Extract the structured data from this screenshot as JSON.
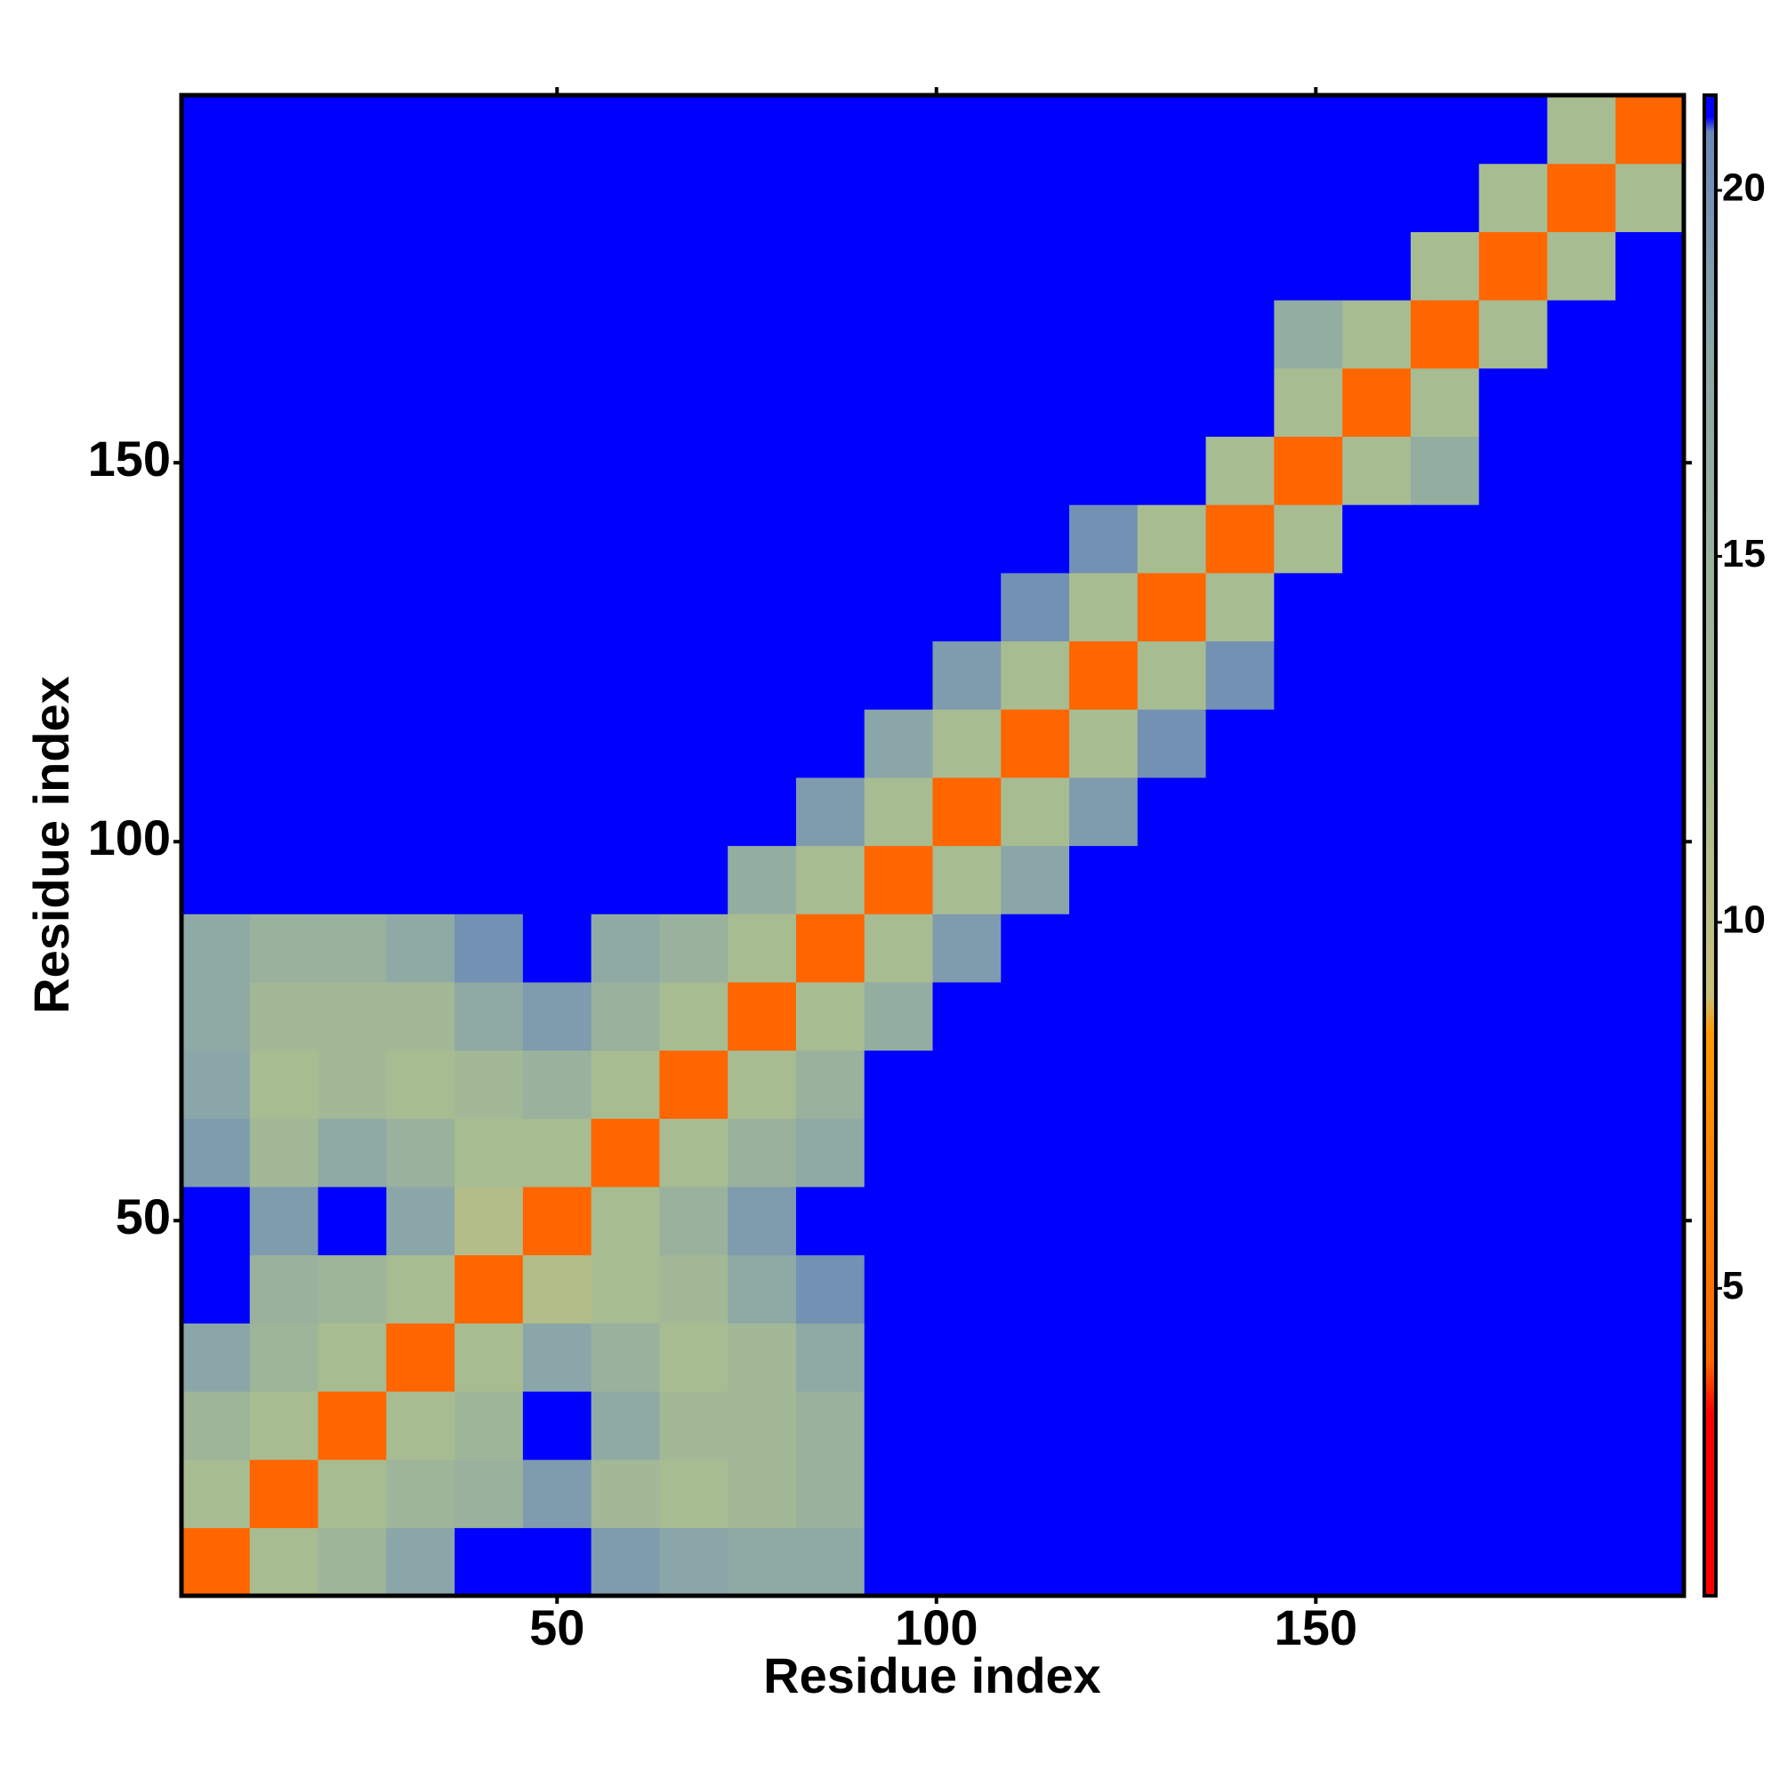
{
  "chart_data": {
    "type": "heatmap",
    "xlabel": "Residue index",
    "ylabel": "Residue index",
    "x": [
      5,
      14,
      23,
      32,
      41,
      50,
      59,
      68,
      77,
      86,
      95,
      104,
      113,
      122,
      131,
      140,
      149,
      158,
      167,
      176,
      185,
      194
    ],
    "y": [
      5,
      14,
      23,
      32,
      41,
      50,
      59,
      68,
      77,
      86,
      95,
      104,
      113,
      122,
      131,
      140,
      149,
      158,
      167,
      176,
      185,
      194
    ],
    "z": [
      [
        4,
        12,
        14,
        18,
        21.3,
        21.3,
        19,
        18,
        17,
        17,
        21.3,
        21.3,
        21.3,
        21.3,
        21.3,
        21.3,
        21.3,
        21.3,
        21.3,
        21.3,
        21.3,
        21.3
      ],
      [
        12,
        4,
        12,
        14,
        15,
        19,
        13,
        12,
        13,
        15,
        21.3,
        21.3,
        21.3,
        21.3,
        21.3,
        21.3,
        21.3,
        21.3,
        21.3,
        21.3,
        21.3,
        21.3
      ],
      [
        14,
        12,
        4,
        12,
        14,
        21.3,
        17,
        13,
        13,
        15,
        21.3,
        21.3,
        21.3,
        21.3,
        21.3,
        21.3,
        21.3,
        21.3,
        21.3,
        21.3,
        21.3,
        21.3
      ],
      [
        18,
        14,
        12,
        4,
        12,
        18,
        15,
        12,
        13,
        17,
        21.3,
        21.3,
        21.3,
        21.3,
        21.3,
        21.3,
        21.3,
        21.3,
        21.3,
        21.3,
        21.3,
        21.3
      ],
      [
        21.3,
        15,
        14,
        12,
        4,
        11,
        12,
        13,
        17,
        20,
        21.3,
        21.3,
        21.3,
        21.3,
        21.3,
        21.3,
        21.3,
        21.3,
        21.3,
        21.3,
        21.3,
        21.3
      ],
      [
        21.3,
        19,
        21.3,
        18,
        11,
        4,
        12,
        15,
        19,
        21.3,
        21.3,
        21.3,
        21.3,
        21.3,
        21.3,
        21.3,
        21.3,
        21.3,
        21.3,
        21.3,
        21.3,
        21.3
      ],
      [
        19,
        13,
        17,
        15,
        12,
        12,
        4,
        12,
        15,
        17,
        21.3,
        21.3,
        21.3,
        21.3,
        21.3,
        21.3,
        21.3,
        21.3,
        21.3,
        21.3,
        21.3,
        21.3
      ],
      [
        18,
        12,
        13,
        12,
        13,
        15,
        12,
        4,
        12,
        15,
        21.3,
        21.3,
        21.3,
        21.3,
        21.3,
        21.3,
        21.3,
        21.3,
        21.3,
        21.3,
        21.3,
        21.3
      ],
      [
        17,
        13,
        13,
        13,
        17,
        19,
        15,
        12,
        4,
        12,
        16,
        21.3,
        21.3,
        21.3,
        21.3,
        21.3,
        21.3,
        21.3,
        21.3,
        21.3,
        21.3,
        21.3
      ],
      [
        17,
        15,
        15,
        17,
        20,
        21.3,
        17,
        15,
        12,
        4,
        12,
        19,
        21.3,
        21.3,
        21.3,
        21.3,
        21.3,
        21.3,
        21.3,
        21.3,
        21.3,
        21.3
      ],
      [
        21.3,
        21.3,
        21.3,
        21.3,
        21.3,
        21.3,
        21.3,
        21.3,
        16,
        12,
        4,
        12,
        18,
        21.3,
        21.3,
        21.3,
        21.3,
        21.3,
        21.3,
        21.3,
        21.3,
        21.3
      ],
      [
        21.3,
        21.3,
        21.3,
        21.3,
        21.3,
        21.3,
        21.3,
        21.3,
        21.3,
        19,
        12,
        4,
        12,
        19,
        21.3,
        21.3,
        21.3,
        21.3,
        21.3,
        21.3,
        21.3,
        21.3
      ],
      [
        21.3,
        21.3,
        21.3,
        21.3,
        21.3,
        21.3,
        21.3,
        21.3,
        21.3,
        21.3,
        18,
        12,
        4,
        12,
        20,
        21.3,
        21.3,
        21.3,
        21.3,
        21.3,
        21.3,
        21.3
      ],
      [
        21.3,
        21.3,
        21.3,
        21.3,
        21.3,
        21.3,
        21.3,
        21.3,
        21.3,
        21.3,
        21.3,
        19,
        12,
        4,
        12,
        20,
        21.3,
        21.3,
        21.3,
        21.3,
        21.3,
        21.3
      ],
      [
        21.3,
        21.3,
        21.3,
        21.3,
        21.3,
        21.3,
        21.3,
        21.3,
        21.3,
        21.3,
        21.3,
        21.3,
        20,
        12,
        4,
        12,
        21.3,
        21.3,
        21.3,
        21.3,
        21.3,
        21.3
      ],
      [
        21.3,
        21.3,
        21.3,
        21.3,
        21.3,
        21.3,
        21.3,
        21.3,
        21.3,
        21.3,
        21.3,
        21.3,
        21.3,
        20,
        12,
        4,
        12,
        21.3,
        21.3,
        21.3,
        21.3,
        21.3
      ],
      [
        21.3,
        21.3,
        21.3,
        21.3,
        21.3,
        21.3,
        21.3,
        21.3,
        21.3,
        21.3,
        21.3,
        21.3,
        21.3,
        21.3,
        21.3,
        12,
        4,
        12,
        16,
        21.3,
        21.3,
        21.3
      ],
      [
        21.3,
        21.3,
        21.3,
        21.3,
        21.3,
        21.3,
        21.3,
        21.3,
        21.3,
        21.3,
        21.3,
        21.3,
        21.3,
        21.3,
        21.3,
        21.3,
        12,
        4,
        12,
        21.3,
        21.3,
        21.3
      ],
      [
        21.3,
        21.3,
        21.3,
        21.3,
        21.3,
        21.3,
        21.3,
        21.3,
        21.3,
        21.3,
        21.3,
        21.3,
        21.3,
        21.3,
        21.3,
        21.3,
        16,
        12,
        4,
        12,
        21.3,
        21.3
      ],
      [
        21.3,
        21.3,
        21.3,
        21.3,
        21.3,
        21.3,
        21.3,
        21.3,
        21.3,
        21.3,
        21.3,
        21.3,
        21.3,
        21.3,
        21.3,
        21.3,
        21.3,
        21.3,
        12,
        4,
        12,
        21.3
      ],
      [
        21.3,
        21.3,
        21.3,
        21.3,
        21.3,
        21.3,
        21.3,
        21.3,
        21.3,
        21.3,
        21.3,
        21.3,
        21.3,
        21.3,
        21.3,
        21.3,
        21.3,
        21.3,
        21.3,
        12,
        4,
        12
      ],
      [
        21.3,
        21.3,
        21.3,
        21.3,
        21.3,
        21.3,
        21.3,
        21.3,
        21.3,
        21.3,
        21.3,
        21.3,
        21.3,
        21.3,
        21.3,
        21.3,
        21.3,
        21.3,
        21.3,
        21.3,
        12,
        4
      ]
    ],
    "xlim": [
      0.5,
      198.5
    ],
    "ylim": [
      0.5,
      198.5
    ],
    "xticks": [
      50,
      100,
      150
    ],
    "yticks": [
      50,
      100,
      150
    ],
    "zlim": [
      0.8,
      21.3
    ],
    "zticks": [
      5,
      10,
      15,
      20
    ],
    "colorscale": [
      [
        0.8,
        "#ff0000"
      ],
      [
        3.3,
        "#ff0000"
      ],
      [
        4,
        "#ff6600"
      ],
      [
        8.5,
        "#ff9900"
      ],
      [
        9,
        "#c8c07a"
      ],
      [
        12,
        "#a8bc92"
      ],
      [
        18,
        "#8aa6a8"
      ],
      [
        20.8,
        "#6a88b8"
      ],
      [
        21,
        "#0000ff"
      ]
    ]
  }
}
